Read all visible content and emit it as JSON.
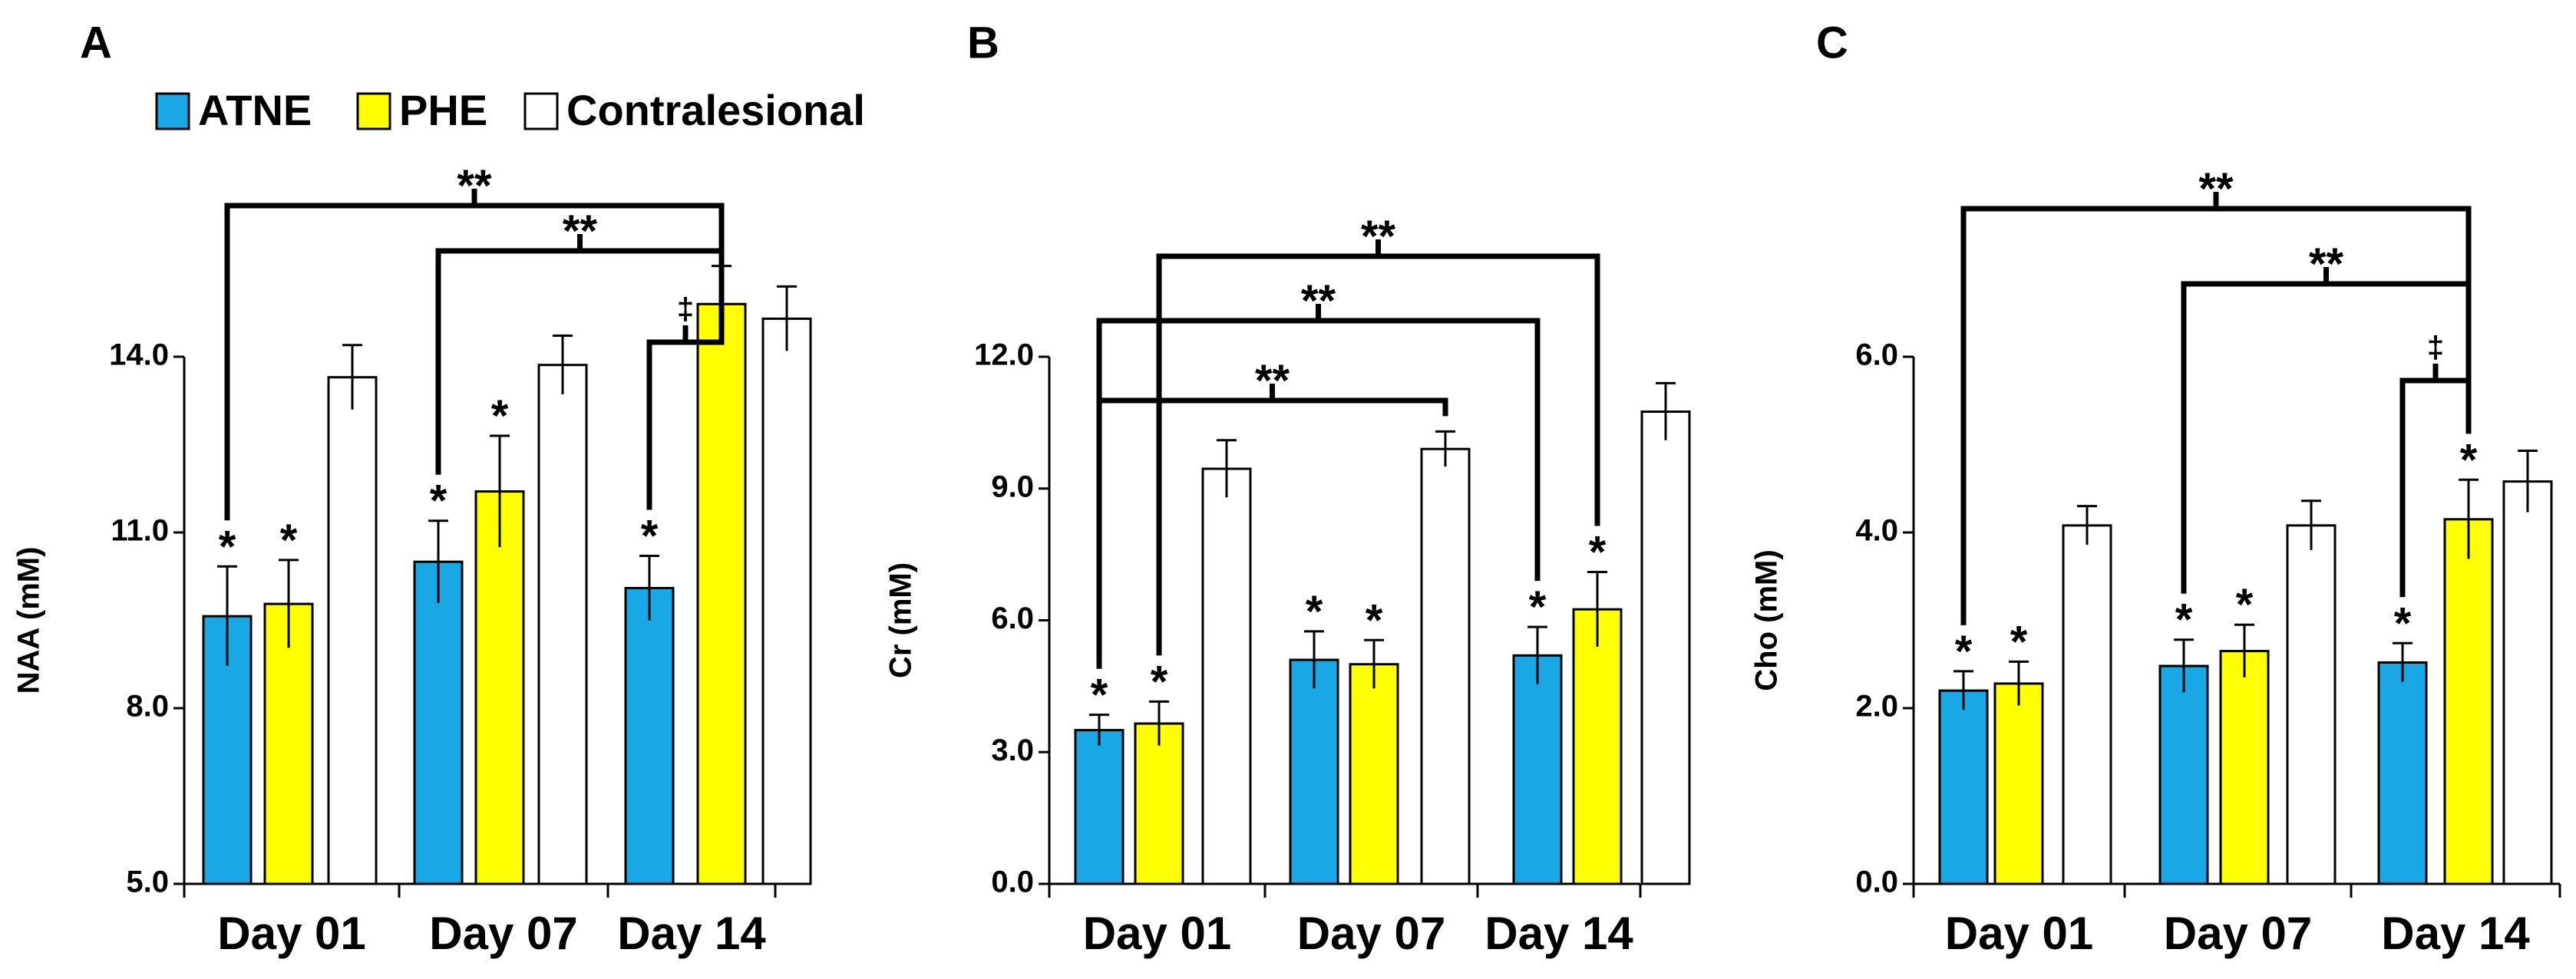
{
  "legend": {
    "items": [
      {
        "label": "ATNE",
        "color": "#1aa7e6"
      },
      {
        "label": "PHE",
        "color": "#ffff00"
      },
      {
        "label": "Contralesional",
        "color": "#ffffff"
      }
    ]
  },
  "colors": {
    "ATNE": "#1aa7e6",
    "PHE": "#ffff00",
    "Contralesional": "#ffffff"
  },
  "chart_data": [
    {
      "panel": "A",
      "type": "bar",
      "ylabel": "NAA (mM)",
      "ylim": [
        5.0,
        14.0
      ],
      "yticks": [
        "5.0",
        "8.0",
        "11.0",
        "14.0"
      ],
      "categories": [
        "Day 01",
        "Day 07",
        "Day 14"
      ],
      "series": [
        {
          "name": "ATNE",
          "values": [
            9.57,
            10.5,
            10.05
          ],
          "errors": [
            0.85,
            0.7,
            0.55
          ],
          "stars": [
            "*",
            "*",
            "*"
          ]
        },
        {
          "name": "PHE",
          "values": [
            9.78,
            11.7,
            14.9
          ],
          "errors": [
            0.75,
            0.95,
            0.65
          ],
          "stars": [
            "*",
            "*",
            ""
          ]
        },
        {
          "name": "Contralesional",
          "values": [
            13.65,
            13.86,
            14.65
          ],
          "errors": [
            0.55,
            0.5,
            0.55
          ],
          "stars": [
            "",
            "",
            ""
          ]
        }
      ],
      "comparisons": [
        {
          "from": "Day 01 ATNE",
          "to": "Day 14 PHE",
          "label": "**"
        },
        {
          "from": "Day 07 ATNE",
          "to": "Day 14 PHE",
          "label": "**"
        },
        {
          "from": "Day 14 ATNE",
          "to": "Day 14 PHE",
          "label": "‡"
        }
      ]
    },
    {
      "panel": "B",
      "type": "bar",
      "ylabel": "Cr (mM)",
      "ylim": [
        0.0,
        12.0
      ],
      "yticks": [
        "0.0",
        "3.0",
        "6.0",
        "9.0",
        "12.0"
      ],
      "categories": [
        "Day 01",
        "Day 07",
        "Day 14"
      ],
      "series": [
        {
          "name": "ATNE",
          "values": [
            3.5,
            5.1,
            5.2
          ],
          "errors": [
            0.35,
            0.65,
            0.65
          ],
          "stars": [
            "*",
            "*",
            "*"
          ]
        },
        {
          "name": "PHE",
          "values": [
            3.65,
            5.0,
            6.25
          ],
          "errors": [
            0.5,
            0.55,
            0.85
          ],
          "stars": [
            "*",
            "*",
            "*"
          ]
        },
        {
          "name": "Contralesional",
          "values": [
            9.45,
            9.9,
            10.75
          ],
          "errors": [
            0.65,
            0.4,
            0.65
          ],
          "stars": [
            "",
            "",
            ""
          ]
        }
      ],
      "comparisons": [
        {
          "from": "Day 01 ATNE",
          "to": "Day 07 Contralesional",
          "label": "**"
        },
        {
          "from": "Day 01 ATNE",
          "to": "Day 14 ATNE",
          "label": "**"
        },
        {
          "from": "Day 01 PHE",
          "to": "Day 14 PHE",
          "label": "**"
        }
      ]
    },
    {
      "panel": "C",
      "type": "bar",
      "ylabel": "Cho (mM)",
      "ylim": [
        0.0,
        6.0
      ],
      "yticks": [
        "0.0",
        "2.0",
        "4.0",
        "6.0"
      ],
      "categories": [
        "Day 01",
        "Day 07",
        "Day 14"
      ],
      "series": [
        {
          "name": "ATNE",
          "values": [
            2.2,
            2.48,
            2.52
          ],
          "errors": [
            0.22,
            0.3,
            0.22
          ],
          "stars": [
            "*",
            "*",
            "*"
          ]
        },
        {
          "name": "PHE",
          "values": [
            2.28,
            2.65,
            4.15
          ],
          "errors": [
            0.25,
            0.3,
            0.45
          ],
          "stars": [
            "*",
            "*",
            "*"
          ]
        },
        {
          "name": "Contralesional",
          "values": [
            4.08,
            4.08,
            4.58
          ],
          "errors": [
            0.22,
            0.28,
            0.35
          ],
          "stars": [
            "",
            "",
            ""
          ]
        }
      ],
      "comparisons": [
        {
          "from": "Day 01 ATNE",
          "to": "Day 14 PHE",
          "label": "**"
        },
        {
          "from": "Day 07 ATNE",
          "to": "Day 14 PHE",
          "label": "**"
        },
        {
          "from": "Day 14 ATNE",
          "to": "Day 14 PHE",
          "label": "‡"
        }
      ]
    }
  ]
}
